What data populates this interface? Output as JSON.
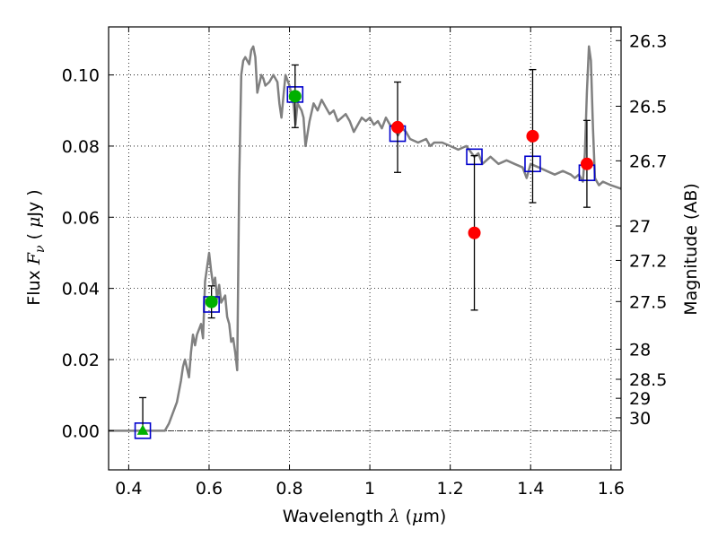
{
  "chart_data": {
    "type": "scatter",
    "xlabel": "Wavelength  λ (μm)",
    "xlabel_parts": {
      "prefix": "Wavelength  ",
      "symbol": "λ",
      "unit": " (μm)",
      "mu": "μ",
      "m": "m)",
      "open": " ("
    },
    "ylabel": "Flux  Fν  ( μJy )",
    "ylabel_parts": {
      "prefix": "Flux  ",
      "symbol": "F",
      "subscript": "ν",
      "unit_open": "  ( ",
      "mu": "μ",
      "unit_close": "Jy )"
    },
    "y2label": "Magnitude (AB)",
    "xlim": [
      0.35,
      1.625
    ],
    "ylim": [
      -0.011,
      0.1135
    ],
    "grid": true,
    "x_ticks": [
      0.4,
      0.6,
      0.8,
      1.0,
      1.2,
      1.4,
      1.6
    ],
    "x_tick_labels": [
      "0.4",
      "0.6",
      "0.8",
      "1",
      "1.2",
      "1.4",
      "1.6"
    ],
    "y_ticks": [
      0.0,
      0.02,
      0.04,
      0.06,
      0.08,
      0.1
    ],
    "y_tick_labels": [
      "0.00",
      "0.02",
      "0.04",
      "0.06",
      "0.08",
      "0.10"
    ],
    "magnitude_ticks": [
      "26.3",
      "26.5",
      "26.7",
      "27",
      "27.2",
      "27.5",
      "28",
      "28.5",
      "29",
      "30"
    ],
    "magnitude_values": [
      26.3,
      26.5,
      26.7,
      27.0,
      27.2,
      27.5,
      28.0,
      28.5,
      29.0,
      30.0
    ],
    "colors": {
      "model": "#808080",
      "model_photometry": "#0000cc",
      "detected": "#00b000",
      "observed": "#ff0000",
      "errorbar": "#000000",
      "zero_line": "#000000"
    },
    "series": [
      {
        "kind": "model_spectrum",
        "x": [
          0.35,
          0.49,
          0.5,
          0.52,
          0.53,
          0.535,
          0.54,
          0.55,
          0.555,
          0.56,
          0.565,
          0.57,
          0.58,
          0.585,
          0.59,
          0.6,
          0.605,
          0.61,
          0.615,
          0.62,
          0.625,
          0.63,
          0.64,
          0.645,
          0.65,
          0.655,
          0.66,
          0.665,
          0.67,
          0.675,
          0.68,
          0.685,
          0.69,
          0.695,
          0.7,
          0.705,
          0.71,
          0.715,
          0.72,
          0.73,
          0.735,
          0.74,
          0.75,
          0.76,
          0.77,
          0.775,
          0.78,
          0.785,
          0.79,
          0.8,
          0.81,
          0.815,
          0.82,
          0.83,
          0.835,
          0.84,
          0.85,
          0.86,
          0.87,
          0.88,
          0.89,
          0.9,
          0.91,
          0.92,
          0.93,
          0.94,
          0.95,
          0.96,
          0.97,
          0.98,
          0.99,
          1.0,
          1.01,
          1.02,
          1.03,
          1.04,
          1.05,
          1.06,
          1.07,
          1.08,
          1.09,
          1.1,
          1.12,
          1.14,
          1.15,
          1.16,
          1.18,
          1.2,
          1.22,
          1.24,
          1.26,
          1.27,
          1.28,
          1.3,
          1.32,
          1.34,
          1.36,
          1.38,
          1.39,
          1.4,
          1.42,
          1.44,
          1.46,
          1.48,
          1.5,
          1.51,
          1.52,
          1.53,
          1.535,
          1.54,
          1.545,
          1.55,
          1.555,
          1.56,
          1.565,
          1.57,
          1.58,
          1.6,
          1.625
        ],
        "y": [
          0.0,
          0.0,
          0.002,
          0.008,
          0.014,
          0.018,
          0.02,
          0.015,
          0.022,
          0.027,
          0.024,
          0.027,
          0.03,
          0.026,
          0.042,
          0.05,
          0.045,
          0.041,
          0.043,
          0.037,
          0.041,
          0.036,
          0.038,
          0.032,
          0.03,
          0.025,
          0.026,
          0.022,
          0.017,
          0.07,
          0.1,
          0.104,
          0.105,
          0.104,
          0.103,
          0.107,
          0.108,
          0.105,
          0.095,
          0.1,
          0.099,
          0.097,
          0.098,
          0.1,
          0.098,
          0.092,
          0.088,
          0.094,
          0.1,
          0.097,
          0.092,
          0.086,
          0.092,
          0.09,
          0.088,
          0.08,
          0.087,
          0.092,
          0.09,
          0.093,
          0.091,
          0.089,
          0.09,
          0.087,
          0.088,
          0.089,
          0.087,
          0.084,
          0.086,
          0.088,
          0.087,
          0.088,
          0.086,
          0.087,
          0.085,
          0.088,
          0.086,
          0.085,
          0.083,
          0.085,
          0.084,
          0.082,
          0.081,
          0.082,
          0.08,
          0.081,
          0.081,
          0.08,
          0.079,
          0.08,
          0.077,
          0.078,
          0.075,
          0.077,
          0.075,
          0.076,
          0.075,
          0.074,
          0.071,
          0.075,
          0.074,
          0.073,
          0.072,
          0.073,
          0.072,
          0.071,
          0.072,
          0.07,
          0.078,
          0.095,
          0.108,
          0.104,
          0.085,
          0.071,
          0.07,
          0.069,
          0.07,
          0.069,
          0.068
        ]
      },
      {
        "kind": "model_photometry",
        "marker": "square",
        "x": [
          0.435,
          0.606,
          0.814,
          1.069,
          1.26,
          1.405,
          1.54
        ],
        "y": [
          0.0,
          0.0355,
          0.0945,
          0.0835,
          0.077,
          0.075,
          0.0725
        ]
      },
      {
        "kind": "observed_detected",
        "marker": "circle",
        "x": [
          0.606,
          0.814
        ],
        "y": [
          0.0362,
          0.094
        ],
        "yerr": [
          0.0045,
          0.0088
        ]
      },
      {
        "kind": "observed_upper",
        "marker": "triangle",
        "x": [
          0.435
        ],
        "y": [
          0.0
        ],
        "yerr_low": [
          0.0
        ],
        "yerr_high": [
          0.0093
        ]
      },
      {
        "kind": "observed_ir",
        "marker": "circle",
        "x": [
          1.069,
          1.26,
          1.405,
          1.54
        ],
        "y": [
          0.0853,
          0.0556,
          0.0828,
          0.075
        ],
        "yerr": [
          0.0127,
          0.0217,
          0.0187,
          0.0122
        ]
      }
    ]
  }
}
